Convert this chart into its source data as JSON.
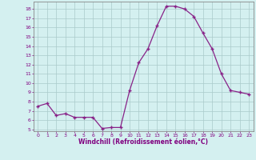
{
  "x": [
    0,
    1,
    2,
    3,
    4,
    5,
    6,
    7,
    8,
    9,
    10,
    11,
    12,
    13,
    14,
    15,
    16,
    17,
    18,
    19,
    20,
    21,
    22,
    23
  ],
  "y": [
    7.5,
    7.8,
    6.5,
    6.7,
    6.3,
    6.3,
    6.3,
    5.1,
    5.2,
    5.2,
    9.2,
    12.2,
    13.7,
    16.2,
    18.3,
    18.3,
    18.0,
    17.2,
    15.4,
    13.7,
    11.0,
    9.2,
    9.0,
    8.8
  ],
  "xlabel": "Windchill (Refroidissement éolien,°C)",
  "ylim": [
    4.8,
    18.8
  ],
  "xlim": [
    -0.5,
    23.5
  ],
  "yticks": [
    5,
    6,
    7,
    8,
    9,
    10,
    11,
    12,
    13,
    14,
    15,
    16,
    17,
    18
  ],
  "xticks": [
    0,
    1,
    2,
    3,
    4,
    5,
    6,
    7,
    8,
    9,
    10,
    11,
    12,
    13,
    14,
    15,
    16,
    17,
    18,
    19,
    20,
    21,
    22,
    23
  ],
  "line_color": "#882288",
  "marker": "+",
  "bg_color": "#d4f0f0",
  "grid_color": "#aacaca",
  "label_color": "#800080",
  "tick_color": "#800080",
  "axis_color": "#888888"
}
